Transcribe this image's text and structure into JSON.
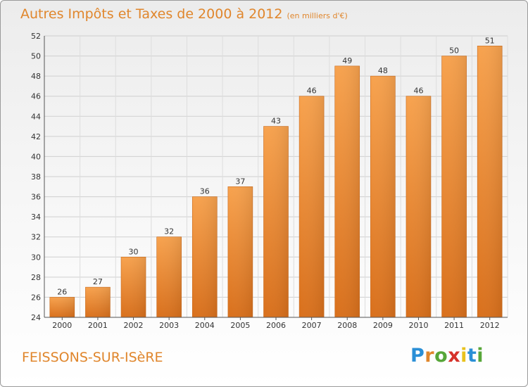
{
  "chart_data": {
    "type": "bar",
    "title": "Autres Impôts et Taxes de 2000 à 2012",
    "unit": "(en milliers d'€)",
    "xlabel": "",
    "ylabel": "",
    "categories": [
      "2000",
      "2001",
      "2002",
      "2003",
      "2004",
      "2005",
      "2006",
      "2007",
      "2008",
      "2009",
      "2010",
      "2011",
      "2012"
    ],
    "values": [
      26,
      27,
      30,
      32,
      36,
      37,
      43,
      46,
      49,
      48,
      46,
      50,
      51
    ],
    "ylim": [
      24,
      52
    ],
    "yticks": [
      24,
      26,
      28,
      30,
      32,
      34,
      36,
      38,
      40,
      42,
      44,
      46,
      48,
      50,
      52
    ],
    "grid": true,
    "legend": "none",
    "bar_color": "#f0913a"
  },
  "footer": {
    "commune": "FEISSONS-SUR-ISèRE",
    "logo_letters": [
      "P",
      "r",
      "o",
      "x",
      "i",
      "t",
      "i"
    ],
    "logo_colors": [
      "#2a8fd6",
      "#e0862c",
      "#57a639",
      "#d6322a",
      "#e8c21e",
      "#2a8fd6",
      "#57a639"
    ]
  }
}
